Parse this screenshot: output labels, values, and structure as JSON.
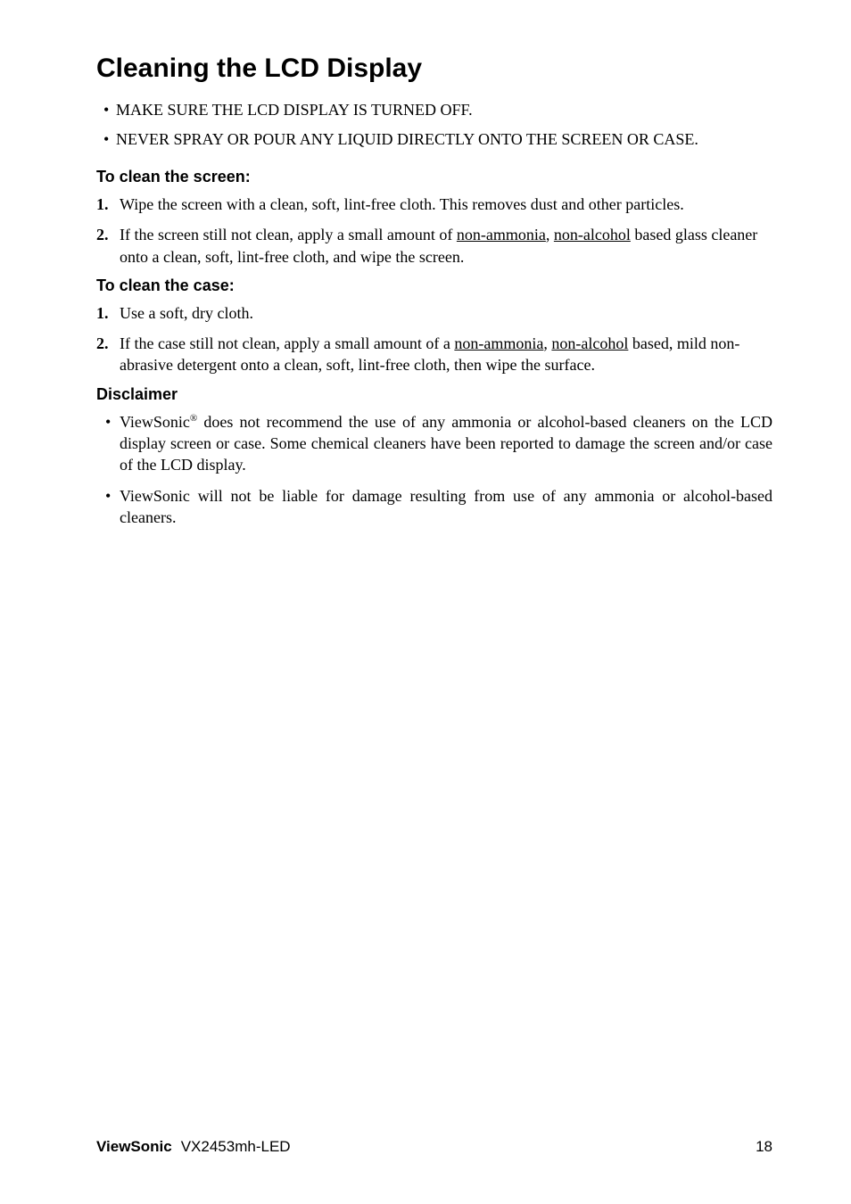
{
  "title": "Cleaning the LCD Display",
  "intro_bullets": [
    "MAKE SURE THE LCD DISPLAY IS TURNED OFF.",
    "NEVER SPRAY OR POUR ANY LIQUID DIRECTLY ONTO THE SCREEN OR CASE."
  ],
  "screen": {
    "heading": "To clean the screen:",
    "steps": [
      {
        "num": "1.",
        "pre": "Wipe the screen with a clean, soft, lint-free cloth. This removes dust and other particles."
      },
      {
        "num": "2.",
        "pre": "If the screen still not clean, apply a small amount of ",
        "u1": "non-ammonia",
        "mid": ", ",
        "u2": "non-alcohol",
        "post": " based glass cleaner onto a clean, soft, lint-free cloth, and wipe the screen."
      }
    ]
  },
  "case": {
    "heading": "To clean the case:",
    "steps": [
      {
        "num": "1.",
        "pre": "Use a soft, dry cloth."
      },
      {
        "num": "2.",
        "pre": "If the case still not clean, apply a small amount of a ",
        "u1": "non-ammonia",
        "mid": ", ",
        "u2": "non-alcohol",
        "post": " based, mild non-abrasive detergent onto a clean, soft, lint-free cloth, then wipe the surface."
      }
    ]
  },
  "disclaimer": {
    "heading": "Disclaimer",
    "items": [
      {
        "pre": "ViewSonic",
        "sup": "®",
        "post": " does not recommend the use of any ammonia or alcohol-based cleaners on the LCD display screen or case. Some chemical cleaners have been reported to damage the screen and/or case of the LCD display."
      },
      {
        "pre": "ViewSonic will not be liable for damage resulting from use of any ammonia or alcohol-based cleaners."
      }
    ]
  },
  "footer": {
    "brand": "ViewSonic",
    "model": "VX2453mh-LED",
    "page": "18"
  },
  "colors": {
    "text": "#000000",
    "background": "#ffffff"
  },
  "typography": {
    "heading_font": "Arial",
    "body_font": "Times New Roman",
    "h1_size_pt": 22,
    "h2_size_pt": 13,
    "body_size_pt": 13
  }
}
